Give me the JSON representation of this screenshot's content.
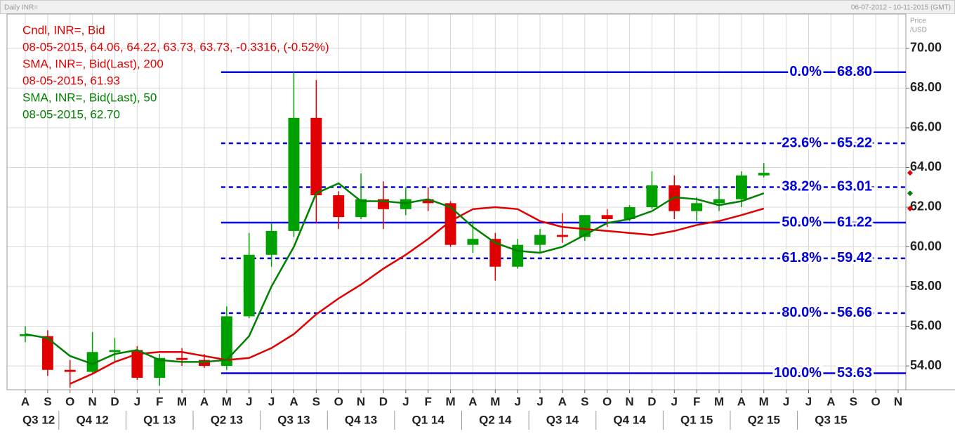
{
  "chart_data": {
    "type": "candlestick",
    "title": "Daily INR=",
    "date_range": "06-07-2012 - 10-11-2015 (GMT)",
    "y_axis_label": [
      "Price",
      "/USD"
    ],
    "legend": [
      {
        "text": "Cndl, INR=, Bid",
        "color": "#e00000"
      },
      {
        "text": "08-05-2015, 64.06, 64.22, 63.73, 63.73, -0.3316, (-0.52%)",
        "color": "#e00000"
      },
      {
        "text": "SMA, INR=, Bid(Last),  200",
        "color": "#e00000"
      },
      {
        "text": "08-05-2015, 61.93",
        "color": "#e00000"
      },
      {
        "text": "SMA, INR=, Bid(Last),  50",
        "color": "#008000"
      },
      {
        "text": "08-05-2015, 62.70",
        "color": "#008000"
      }
    ],
    "categories": [
      "A",
      "S",
      "O",
      "N",
      "D",
      "J",
      "F",
      "M",
      "A",
      "M",
      "J",
      "J",
      "A",
      "S",
      "O",
      "N",
      "D",
      "J",
      "F",
      "M",
      "A",
      "M",
      "J",
      "J",
      "A",
      "S",
      "O",
      "N",
      "D",
      "J",
      "F",
      "M",
      "A",
      "M",
      "J",
      "J",
      "A",
      "S",
      "O",
      "N"
    ],
    "quarters": [
      "Q3 12",
      "Q4 12",
      "Q1 13",
      "Q2 13",
      "Q3 13",
      "Q4 13",
      "Q1 14",
      "Q2 14",
      "Q3 14",
      "Q4 14",
      "Q1 15",
      "Q2 15",
      "Q3 15"
    ],
    "candles": {
      "up_color": "#00a000",
      "down_color": "#e00000",
      "open": [
        55.5,
        55.5,
        53.8,
        53.7,
        54.7,
        54.8,
        53.4,
        54.4,
        54.3,
        54.0,
        56.5,
        59.6,
        60.8,
        66.5,
        62.6,
        61.5,
        62.4,
        61.9,
        62.4,
        62.2,
        60.1,
        60.4,
        59.0,
        60.1,
        60.6,
        60.5,
        61.6,
        61.4,
        62.0,
        63.1,
        61.8,
        62.2,
        62.4,
        63.6,
        null,
        null,
        null,
        null,
        null,
        null
      ],
      "high": [
        56.0,
        55.8,
        54.3,
        55.7,
        55.4,
        55.0,
        54.6,
        54.9,
        54.6,
        57.0,
        60.7,
        61.2,
        68.8,
        68.4,
        62.8,
        63.7,
        63.3,
        63.0,
        63.0,
        62.3,
        61.3,
        60.7,
        60.4,
        60.9,
        61.7,
        61.6,
        61.9,
        62.1,
        63.8,
        63.6,
        62.5,
        63.0,
        63.8,
        64.22,
        null,
        null,
        null,
        null,
        null,
        null
      ],
      "low": [
        55.2,
        53.5,
        52.9,
        53.6,
        54.2,
        53.3,
        53.0,
        54.0,
        53.9,
        53.8,
        56.4,
        59.0,
        60.5,
        61.2,
        60.9,
        61.4,
        60.9,
        61.6,
        61.8,
        60.0,
        59.7,
        58.3,
        58.9,
        59.7,
        60.2,
        60.3,
        61.0,
        61.3,
        61.9,
        61.4,
        61.3,
        61.8,
        62.0,
        63.5,
        null,
        null,
        null,
        null,
        null,
        null
      ],
      "close": [
        55.6,
        53.8,
        53.7,
        54.7,
        54.8,
        53.4,
        54.4,
        54.3,
        54.0,
        56.5,
        59.6,
        60.8,
        66.5,
        62.6,
        61.5,
        62.4,
        61.9,
        62.4,
        62.2,
        60.1,
        60.4,
        59.0,
        60.1,
        60.6,
        60.5,
        61.6,
        61.4,
        62.0,
        63.1,
        61.8,
        62.2,
        62.4,
        63.6,
        63.73,
        null,
        null,
        null,
        null,
        null,
        null
      ]
    },
    "series": [
      {
        "name": "SMA 200",
        "color": "#e00000",
        "values": [
          null,
          null,
          53.1,
          53.6,
          54.2,
          54.6,
          54.7,
          54.7,
          54.5,
          54.3,
          54.4,
          54.9,
          55.6,
          56.6,
          57.4,
          58.1,
          58.9,
          59.6,
          60.4,
          61.3,
          61.9,
          62.0,
          61.9,
          61.3,
          61.0,
          60.9,
          60.8,
          60.7,
          60.6,
          60.8,
          61.1,
          61.3,
          61.6,
          61.93,
          null,
          null,
          null,
          null,
          null,
          null
        ]
      },
      {
        "name": "SMA 50",
        "color": "#008000",
        "values": [
          55.6,
          55.4,
          54.5,
          54.1,
          54.6,
          54.8,
          54.3,
          54.2,
          54.2,
          54.3,
          55.5,
          58.0,
          60.0,
          62.7,
          63.2,
          62.3,
          62.3,
          62.2,
          62.4,
          62.0,
          61.0,
          60.2,
          59.8,
          59.7,
          60.0,
          60.6,
          61.2,
          61.4,
          61.8,
          62.5,
          62.4,
          62.1,
          62.3,
          62.7,
          null,
          null,
          null,
          null,
          null,
          null
        ]
      }
    ],
    "fibonacci": {
      "color": "#0000dd",
      "levels": [
        {
          "ratio": "0.0%",
          "value": 68.8,
          "label": "68.80",
          "style": "solid"
        },
        {
          "ratio": "23.6%",
          "value": 65.22,
          "label": "65.22",
          "style": "dashed"
        },
        {
          "ratio": "38.2%",
          "value": 63.01,
          "label": "63.01",
          "style": "dashed"
        },
        {
          "ratio": "50.0%",
          "value": 61.22,
          "label": "61.22",
          "style": "solid"
        },
        {
          "ratio": "61.8%",
          "value": 59.42,
          "label": "59.42",
          "style": "dashed"
        },
        {
          "ratio": "80.0%",
          "value": 56.66,
          "label": "56.66",
          "style": "dashed"
        },
        {
          "ratio": "100.0%",
          "value": 53.63,
          "label": "53.63",
          "style": "solid"
        }
      ]
    },
    "ylim": [
      52.8,
      71.73
    ],
    "yticks": [
      {
        "value": 54,
        "label": "54.00"
      },
      {
        "value": 56,
        "label": "56.00"
      },
      {
        "value": 58,
        "label": "58.00"
      },
      {
        "value": 60,
        "label": "60.00"
      },
      {
        "value": 62,
        "label": "62.00"
      },
      {
        "value": 64,
        "label": "64.00"
      },
      {
        "value": 66,
        "label": "66.00"
      },
      {
        "value": 68,
        "label": "68.00"
      },
      {
        "value": 70,
        "label": "70.00"
      }
    ],
    "grid": true
  }
}
